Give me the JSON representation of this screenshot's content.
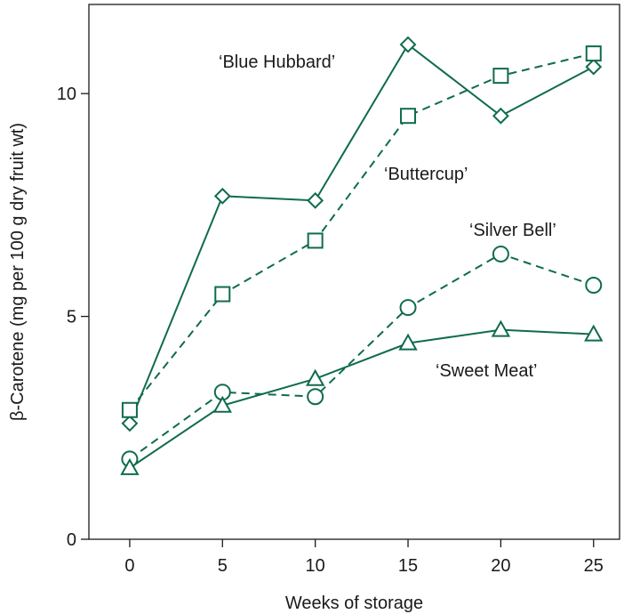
{
  "chart_data": {
    "type": "line",
    "title": "",
    "xlabel": "Weeks of storage",
    "ylabel": "β-Carotene (mg per 100 g dry fruit wt)",
    "x": [
      0,
      5,
      10,
      15,
      20,
      25
    ],
    "xlim": [
      -2.2,
      26.4
    ],
    "ylim": [
      0,
      12
    ],
    "xticks": [
      0,
      5,
      10,
      15,
      20,
      25
    ],
    "yticks": [
      0,
      5,
      10
    ],
    "grid": false,
    "legend": "none (series labelled directly on plot)",
    "color": "#0f6b4f",
    "series": [
      {
        "name": "‘Blue Hubbard’",
        "line": "solid",
        "marker": "diamond",
        "values": [
          2.6,
          7.7,
          7.6,
          11.1,
          9.5,
          10.6
        ]
      },
      {
        "name": "‘Buttercup’",
        "line": "dashed",
        "marker": "square",
        "values": [
          2.9,
          5.5,
          6.7,
          9.5,
          10.4,
          10.9
        ]
      },
      {
        "name": "‘Silver Bell’",
        "line": "dashed",
        "marker": "circle",
        "values": [
          1.8,
          3.3,
          3.2,
          5.2,
          6.4,
          5.7
        ]
      },
      {
        "name": "‘Sweet Meat’",
        "line": "solid",
        "marker": "triangle",
        "values": [
          1.6,
          3.0,
          3.6,
          4.4,
          4.7,
          4.6
        ]
      }
    ]
  }
}
